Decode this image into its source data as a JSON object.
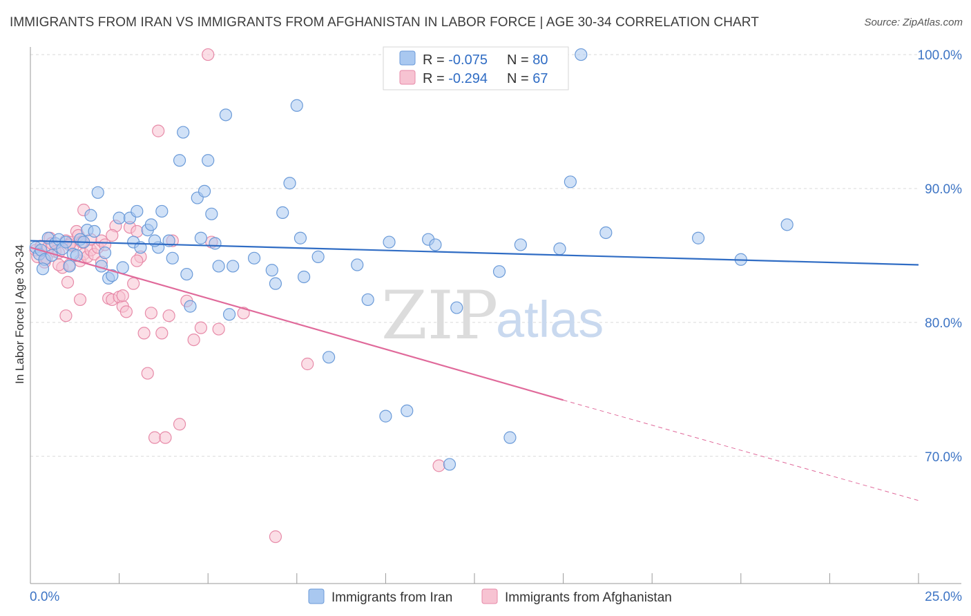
{
  "title": "IMMIGRANTS FROM IRAN VS IMMIGRANTS FROM AFGHANISTAN IN LABOR FORCE | AGE 30-34 CORRELATION CHART",
  "source": "Source: ZipAtlas.com",
  "watermark": {
    "zip": "ZIP",
    "atlas": "atlas"
  },
  "colors": {
    "iran_fill": "#a9c8f0",
    "iran_stroke": "#6a9ad8",
    "iran_line": "#2f6cc4",
    "afg_fill": "#f7c3d2",
    "afg_stroke": "#e78aa8",
    "afg_line": "#e0699a",
    "grid": "#d9d9d9",
    "axis": "#999999",
    "tick_label": "#3d74c4"
  },
  "legend": {
    "iran": {
      "r_label": "R = ",
      "r_value": "-0.075",
      "n_label": "N = ",
      "n_value": "80"
    },
    "afg": {
      "r_label": "R = ",
      "r_value": "-0.294",
      "n_label": "N = ",
      "n_value": "67"
    }
  },
  "chart_data": {
    "type": "scatter",
    "title": "IMMIGRANTS FROM IRAN VS IMMIGRANTS FROM AFGHANISTAN IN LABOR FORCE | AGE 30-34 CORRELATION CHART",
    "xlabel": "",
    "ylabel": "In Labor Force | Age 30-34",
    "xlim": [
      0,
      25
    ],
    "ylim": [
      60.5,
      101.5
    ],
    "x_tick_labels": [
      "0.0%",
      "25.0%"
    ],
    "y_ticks": [
      70,
      80,
      90,
      100
    ],
    "y_tick_labels": [
      "70.0%",
      "80.0%",
      "90.0%",
      "100.0%"
    ],
    "grid": true,
    "legend_position": "top-center",
    "series": [
      {
        "name": "Immigrants from Iran",
        "r": -0.075,
        "n": 80,
        "trend": {
          "x0": 0.0,
          "y0": 86.1,
          "x1": 25.0,
          "y1": 84.3
        },
        "points": [
          [
            0.15,
            85.6
          ],
          [
            0.25,
            85.1
          ],
          [
            0.3,
            85.4
          ],
          [
            0.4,
            84.7
          ],
          [
            0.5,
            86.3
          ],
          [
            0.6,
            85.0
          ],
          [
            0.7,
            85.9
          ],
          [
            0.8,
            86.2
          ],
          [
            0.9,
            85.5
          ],
          [
            1.1,
            84.2
          ],
          [
            1.2,
            85.1
          ],
          [
            1.3,
            85.0
          ],
          [
            1.4,
            86.2
          ],
          [
            1.5,
            86.0
          ],
          [
            1.6,
            86.9
          ],
          [
            1.7,
            88.0
          ],
          [
            1.8,
            86.8
          ],
          [
            1.9,
            89.7
          ],
          [
            2.0,
            84.2
          ],
          [
            2.2,
            83.3
          ],
          [
            2.3,
            83.5
          ],
          [
            2.5,
            87.8
          ],
          [
            2.6,
            84.1
          ],
          [
            2.8,
            87.8
          ],
          [
            2.9,
            86.0
          ],
          [
            3.0,
            88.3
          ],
          [
            3.1,
            85.6
          ],
          [
            3.3,
            86.9
          ],
          [
            3.4,
            87.3
          ],
          [
            3.6,
            85.6
          ],
          [
            3.7,
            88.3
          ],
          [
            3.9,
            86.1
          ],
          [
            4.0,
            84.8
          ],
          [
            4.2,
            92.1
          ],
          [
            4.3,
            94.2
          ],
          [
            4.4,
            83.6
          ],
          [
            4.5,
            81.2
          ],
          [
            4.7,
            89.3
          ],
          [
            4.8,
            86.3
          ],
          [
            4.9,
            89.8
          ],
          [
            5.0,
            92.1
          ],
          [
            5.1,
            88.1
          ],
          [
            5.2,
            85.9
          ],
          [
            5.3,
            84.2
          ],
          [
            5.5,
            95.5
          ],
          [
            5.6,
            80.6
          ],
          [
            5.7,
            84.2
          ],
          [
            6.3,
            84.8
          ],
          [
            6.8,
            83.9
          ],
          [
            6.9,
            82.9
          ],
          [
            7.1,
            88.2
          ],
          [
            7.3,
            90.4
          ],
          [
            7.5,
            96.2
          ],
          [
            7.6,
            86.3
          ],
          [
            7.7,
            83.4
          ],
          [
            8.1,
            84.9
          ],
          [
            8.4,
            77.4
          ],
          [
            9.2,
            84.3
          ],
          [
            9.5,
            81.7
          ],
          [
            10.0,
            73.0
          ],
          [
            10.1,
            86.0
          ],
          [
            10.6,
            73.4
          ],
          [
            11.2,
            86.2
          ],
          [
            11.4,
            85.8
          ],
          [
            11.8,
            69.4
          ],
          [
            12.0,
            81.1
          ],
          [
            13.2,
            83.8
          ],
          [
            13.5,
            71.4
          ],
          [
            13.8,
            85.8
          ],
          [
            14.9,
            85.5
          ],
          [
            15.2,
            90.5
          ],
          [
            15.5,
            100.0
          ],
          [
            16.2,
            86.7
          ],
          [
            18.8,
            86.3
          ],
          [
            20.0,
            84.7
          ],
          [
            21.3,
            87.3
          ],
          [
            0.35,
            84.0
          ],
          [
            1.0,
            86.0
          ],
          [
            2.1,
            85.2
          ],
          [
            3.5,
            86.1
          ]
        ]
      },
      {
        "name": "Immigrants from Afghanistan",
        "r": -0.294,
        "n": 67,
        "trend": {
          "x0": 0.0,
          "y0": 85.6,
          "x1": 15.0,
          "y1": 74.2,
          "dash_to_x": 25.0,
          "dash_to_y": 66.7
        },
        "points": [
          [
            0.15,
            85.4
          ],
          [
            0.2,
            84.9
          ],
          [
            0.3,
            85.7
          ],
          [
            0.4,
            84.5
          ],
          [
            0.45,
            84.8
          ],
          [
            0.5,
            85.6
          ],
          [
            0.55,
            86.3
          ],
          [
            0.6,
            85.9
          ],
          [
            0.7,
            85.3
          ],
          [
            0.8,
            85.2
          ],
          [
            0.9,
            84.1
          ],
          [
            1.0,
            86.1
          ],
          [
            1.05,
            83.0
          ],
          [
            1.1,
            84.3
          ],
          [
            1.15,
            86.0
          ],
          [
            1.2,
            85.7
          ],
          [
            1.3,
            86.8
          ],
          [
            1.35,
            86.5
          ],
          [
            1.4,
            84.6
          ],
          [
            1.45,
            86.0
          ],
          [
            1.5,
            85.1
          ],
          [
            1.6,
            84.9
          ],
          [
            1.7,
            85.4
          ],
          [
            1.8,
            85.1
          ],
          [
            1.9,
            85.6
          ],
          [
            2.0,
            86.1
          ],
          [
            2.1,
            85.8
          ],
          [
            2.2,
            81.8
          ],
          [
            2.3,
            81.7
          ],
          [
            2.4,
            87.2
          ],
          [
            2.5,
            81.9
          ],
          [
            2.6,
            81.2
          ],
          [
            2.7,
            80.8
          ],
          [
            2.8,
            87.1
          ],
          [
            2.9,
            82.9
          ],
          [
            3.0,
            86.8
          ],
          [
            3.1,
            84.9
          ],
          [
            3.2,
            79.2
          ],
          [
            3.3,
            76.2
          ],
          [
            3.4,
            80.7
          ],
          [
            3.5,
            71.4
          ],
          [
            3.6,
            94.3
          ],
          [
            3.7,
            79.2
          ],
          [
            3.8,
            71.4
          ],
          [
            3.9,
            80.5
          ],
          [
            4.0,
            86.1
          ],
          [
            4.2,
            72.4
          ],
          [
            4.4,
            81.6
          ],
          [
            4.6,
            78.7
          ],
          [
            4.8,
            79.6
          ],
          [
            5.0,
            100.0
          ],
          [
            5.1,
            86.0
          ],
          [
            5.3,
            79.5
          ],
          [
            6.0,
            80.7
          ],
          [
            6.9,
            64.0
          ],
          [
            7.8,
            76.9
          ],
          [
            11.5,
            69.3
          ],
          [
            1.0,
            80.5
          ],
          [
            1.4,
            81.7
          ],
          [
            1.5,
            88.4
          ],
          [
            2.0,
            84.5
          ],
          [
            2.6,
            82.0
          ],
          [
            3.0,
            84.6
          ],
          [
            1.7,
            86.2
          ],
          [
            0.8,
            84.3
          ],
          [
            1.1,
            85.8
          ],
          [
            2.3,
            86.5
          ]
        ]
      }
    ]
  },
  "bottom_legend": {
    "iran_label": "Immigrants from Iran",
    "afg_label": "Immigrants from Afghanistan"
  }
}
